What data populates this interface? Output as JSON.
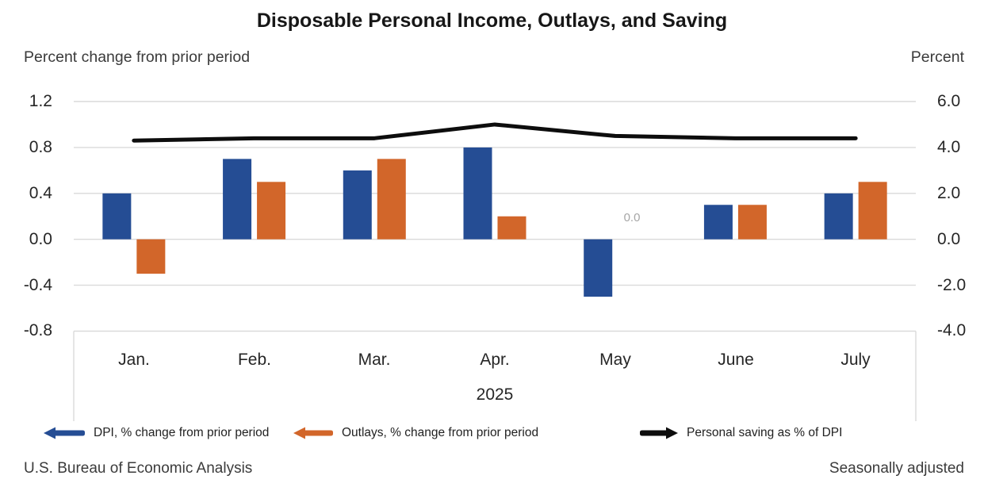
{
  "title": "Disposable Personal Income, Outlays, and Saving",
  "left_axis_caption": "Percent change from prior period",
  "right_axis_caption": "Percent",
  "footer": {
    "source": "U.S. Bureau of Economic Analysis",
    "note": "Seasonally adjusted"
  },
  "chart_data": {
    "type": "bar+line",
    "categories": [
      "Jan.",
      "Feb.",
      "Mar.",
      "Apr.",
      "May",
      "June",
      "July"
    ],
    "x_axis_group_label": "2025",
    "series": [
      {
        "name": "DPI, % change from prior period",
        "type": "bar",
        "axis": "left",
        "color": "#254D94",
        "values": [
          0.4,
          0.7,
          0.6,
          0.8,
          -0.5,
          0.3,
          0.4
        ]
      },
      {
        "name": "Outlays, % change from prior period",
        "type": "bar",
        "axis": "left",
        "color": "#D2662A",
        "values": [
          -0.3,
          0.5,
          0.7,
          0.2,
          0.0,
          0.3,
          0.5
        ]
      },
      {
        "name": "Personal saving as % of DPI",
        "type": "line",
        "axis": "right",
        "color": "#0D0D0D",
        "values": [
          4.3,
          4.4,
          4.4,
          5.0,
          4.5,
          4.4,
          4.4
        ]
      }
    ],
    "left_axis": {
      "ticks": [
        "1.2",
        "0.8",
        "0.4",
        "0.0",
        "-0.4",
        "-0.8"
      ],
      "min": -0.8,
      "max": 1.2
    },
    "right_axis": {
      "ticks": [
        "6.0",
        "4.0",
        "2.0",
        "0.0",
        "-2.0",
        "-4.0"
      ],
      "min": -4.0,
      "max": 6.0
    },
    "annotations": [
      {
        "text": "0.0",
        "category": "May",
        "series": "Outlays, % change from prior period",
        "color": "#A6A6A6"
      }
    ],
    "grid": true,
    "grid_color": "#DADADA",
    "legend_position": "bottom"
  }
}
